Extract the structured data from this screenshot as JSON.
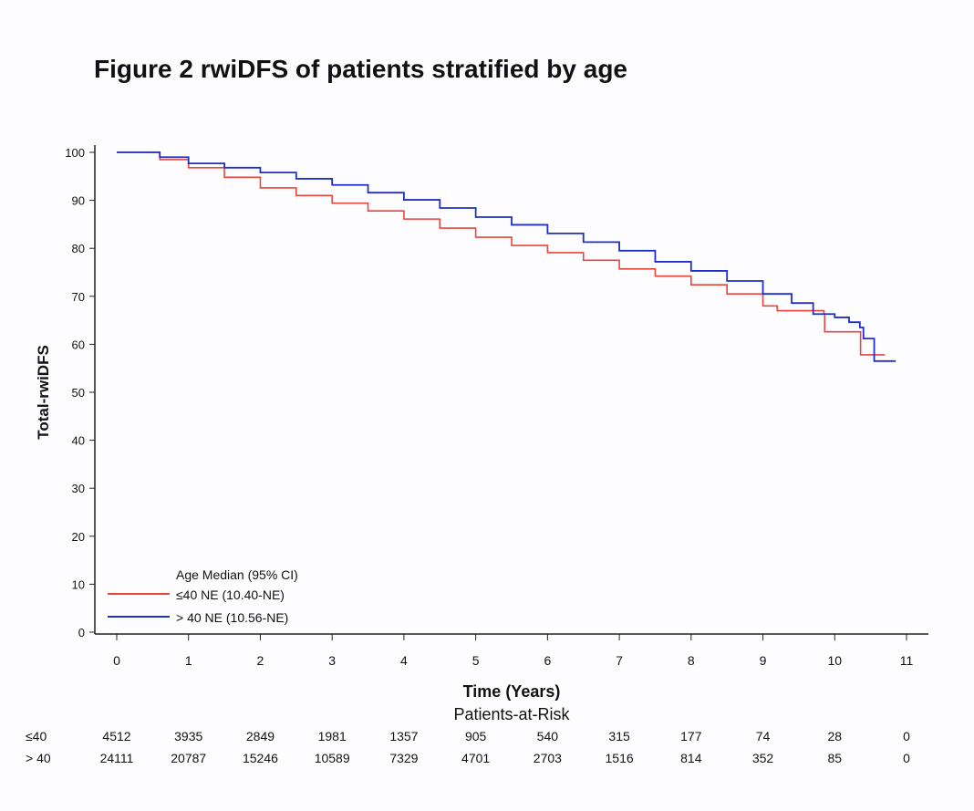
{
  "chart_data": {
    "type": "line",
    "title": "Figure 2  rwiDFS of patients stratified by age",
    "xlabel": "Time (Years)",
    "ylabel": "Total-rwiDFS",
    "xlim": [
      0,
      11
    ],
    "ylim": [
      0,
      100
    ],
    "xticks": [
      0,
      1,
      2,
      3,
      4,
      5,
      6,
      7,
      8,
      9,
      10,
      11
    ],
    "yticks": [
      0,
      10,
      20,
      30,
      40,
      50,
      60,
      70,
      80,
      90,
      100
    ],
    "grid": false,
    "legend": {
      "placement": "bottom-left",
      "header": "Age  Median (95% CI)",
      "entries": [
        {
          "label": "≤40    NE (10.40-NE)",
          "color": "#e8453c"
        },
        {
          "label": "> 40    NE (10.56-NE)",
          "color": "#1f2fc8"
        }
      ]
    },
    "series": [
      {
        "name": "≤40",
        "color": "#e8453c",
        "step": true,
        "points": [
          [
            0,
            100
          ],
          [
            0.5,
            100
          ],
          [
            0.6,
            98.5
          ],
          [
            1,
            96.8
          ],
          [
            1.5,
            94.8
          ],
          [
            2,
            92.6
          ],
          [
            2.5,
            91
          ],
          [
            3,
            89.4
          ],
          [
            3.5,
            87.8
          ],
          [
            4,
            86.1
          ],
          [
            4.5,
            84.2
          ],
          [
            5,
            82.3
          ],
          [
            5.5,
            80.6
          ],
          [
            6,
            79.1
          ],
          [
            6.5,
            77.5
          ],
          [
            7,
            75.7
          ],
          [
            7.5,
            74.2
          ],
          [
            8,
            72.4
          ],
          [
            8.5,
            70.5
          ],
          [
            9,
            68
          ],
          [
            9.2,
            67
          ],
          [
            9.85,
            66.3
          ],
          [
            9.86,
            62.6
          ],
          [
            10.35,
            62.6
          ],
          [
            10.36,
            57.8
          ],
          [
            10.7,
            57.8
          ]
        ]
      },
      {
        "name": "> 40",
        "color": "#1f2fc8",
        "step": true,
        "points": [
          [
            0,
            100
          ],
          [
            0.5,
            100
          ],
          [
            0.6,
            99
          ],
          [
            1,
            97.7
          ],
          [
            1.5,
            96.8
          ],
          [
            2,
            95.8
          ],
          [
            2.5,
            94.5
          ],
          [
            3,
            93.2
          ],
          [
            3.5,
            91.6
          ],
          [
            4,
            90.1
          ],
          [
            4.5,
            88.4
          ],
          [
            5,
            86.5
          ],
          [
            5.5,
            84.9
          ],
          [
            6,
            83.1
          ],
          [
            6.5,
            81.3
          ],
          [
            7,
            79.5
          ],
          [
            7.5,
            77.2
          ],
          [
            8,
            75.3
          ],
          [
            8.5,
            73.2
          ],
          [
            9,
            70.5
          ],
          [
            9.4,
            68.6
          ],
          [
            9.7,
            66.3
          ],
          [
            10.0,
            65.6
          ],
          [
            10.2,
            64.6
          ],
          [
            10.35,
            63.5
          ],
          [
            10.4,
            61.2
          ],
          [
            10.55,
            56.5
          ],
          [
            10.85,
            56.5
          ]
        ]
      }
    ],
    "risk_table": {
      "title": "Patients-at-Risk",
      "rows": [
        {
          "label": "≤40",
          "values": [
            4512,
            3935,
            2849,
            1981,
            1357,
            905,
            540,
            315,
            177,
            74,
            28,
            0
          ]
        },
        {
          "label": "> 40",
          "values": [
            24111,
            20787,
            15246,
            10589,
            7329,
            4701,
            2703,
            1516,
            814,
            352,
            85,
            0
          ]
        }
      ]
    }
  }
}
